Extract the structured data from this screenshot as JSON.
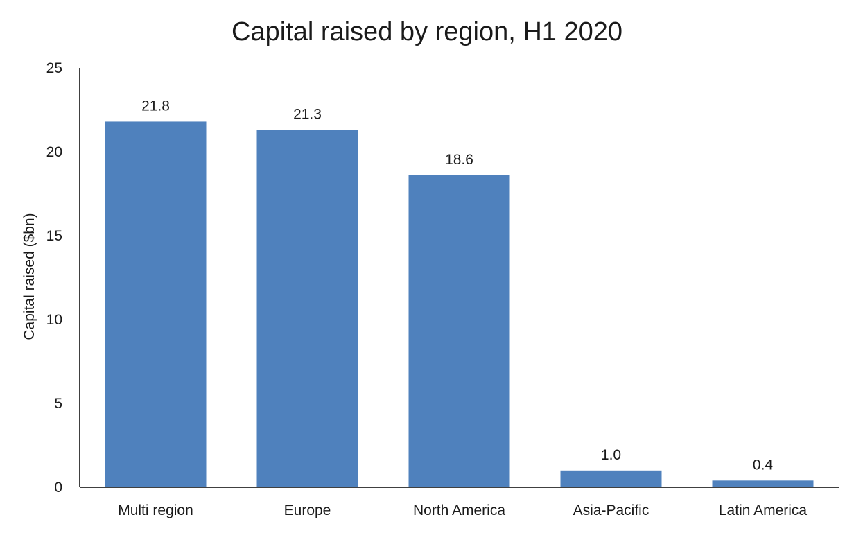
{
  "chart_data": {
    "type": "bar",
    "title": "Capital raised by region, H1 2020",
    "xlabel": "",
    "ylabel": "Capital raised ($bn)",
    "categories": [
      "Multi region",
      "Europe",
      "North America",
      "Asia-Pacific",
      "Latin America"
    ],
    "values": [
      21.8,
      21.3,
      18.6,
      1.0,
      0.4
    ],
    "data_labels": [
      "21.8",
      "21.3",
      "18.6",
      "1.0",
      "0.4"
    ],
    "ylim": [
      0,
      25
    ],
    "yticks": [
      0,
      5,
      10,
      15,
      20,
      25
    ],
    "ytick_labels": [
      "0",
      "5",
      "10",
      "15",
      "20",
      "25"
    ],
    "grid": false,
    "legend": "none",
    "colors": {
      "bar": "#4f81bd",
      "axis": "#000000",
      "text": "#1a1a1a"
    }
  }
}
